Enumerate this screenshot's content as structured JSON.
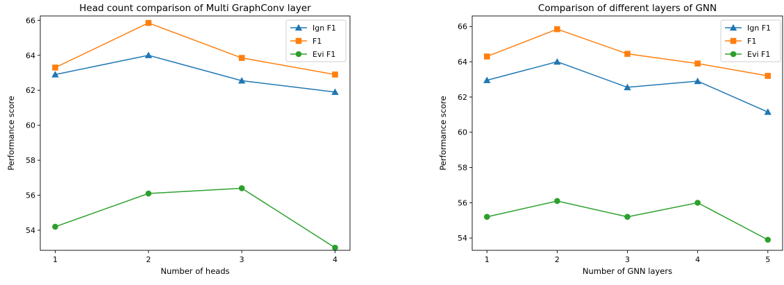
{
  "chart_data": [
    {
      "type": "line",
      "title": "Head count comparison of Multi GraphConv layer",
      "xlabel": "Number of heads",
      "ylabel": "Performance score",
      "x": [
        1,
        2,
        3,
        4
      ],
      "xticks": [
        "1",
        "2",
        "3",
        "4"
      ],
      "yticks": [
        "54",
        "56",
        "58",
        "60",
        "62",
        "64",
        "66"
      ],
      "ylim": [
        52.85,
        66.25
      ],
      "xlim": [
        0.84,
        4.16
      ],
      "legend_position": "top-right",
      "series": [
        {
          "name": "Ign F1",
          "color": "#1f77b4",
          "marker": "triangle",
          "values": [
            62.9,
            64.0,
            62.55,
            61.9
          ]
        },
        {
          "name": "F1",
          "color": "#ff7f0e",
          "marker": "square",
          "values": [
            63.3,
            65.85,
            63.85,
            62.9
          ]
        },
        {
          "name": "Evi F1",
          "color": "#2ca02c",
          "marker": "circle",
          "values": [
            54.2,
            56.1,
            56.4,
            53.0
          ]
        }
      ]
    },
    {
      "type": "line",
      "title": "Comparison of different layers of GNN",
      "xlabel": "Number of GNN layers",
      "ylabel": "Performance score",
      "x": [
        1,
        2,
        3,
        4,
        5
      ],
      "xticks": [
        "1",
        "2",
        "3",
        "4",
        "5"
      ],
      "yticks": [
        "54",
        "56",
        "58",
        "60",
        "62",
        "64",
        "66"
      ],
      "ylim": [
        53.3,
        66.6
      ],
      "xlim": [
        0.79,
        5.21
      ],
      "legend_position": "top-right",
      "series": [
        {
          "name": "Ign F1",
          "color": "#1f77b4",
          "marker": "triangle",
          "values": [
            62.95,
            64.0,
            62.55,
            62.9,
            61.15
          ]
        },
        {
          "name": "F1",
          "color": "#ff7f0e",
          "marker": "square",
          "values": [
            64.3,
            65.85,
            64.45,
            63.9,
            63.2
          ]
        },
        {
          "name": "Evi F1",
          "color": "#2ca02c",
          "marker": "circle",
          "values": [
            55.2,
            56.1,
            55.2,
            56.0,
            53.9
          ]
        }
      ]
    }
  ]
}
